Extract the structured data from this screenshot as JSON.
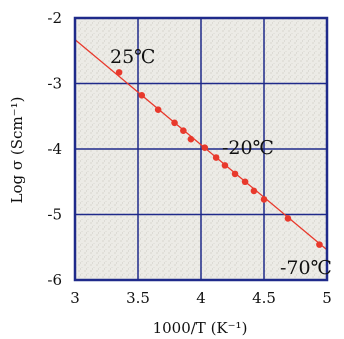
{
  "chart_data": {
    "type": "scatter",
    "xlabel": "1000/T (K⁻¹)",
    "ylabel": "Log σ (Scm⁻¹)",
    "xlim": [
      3,
      5
    ],
    "ylim": [
      -6,
      -2
    ],
    "xticks": [
      "3",
      "3.5",
      "4",
      "4.5",
      "5"
    ],
    "yticks": [
      "-2",
      "-3",
      "-4",
      "-5",
      "-6"
    ],
    "grid": true,
    "series": [
      {
        "points": [
          [
            3.35,
            -2.83
          ],
          [
            3.53,
            -3.18
          ],
          [
            3.66,
            -3.4
          ],
          [
            3.79,
            -3.6
          ],
          [
            3.86,
            -3.72
          ],
          [
            3.92,
            -3.85
          ],
          [
            4.03,
            -3.98
          ],
          [
            4.12,
            -4.13
          ],
          [
            4.19,
            -4.25
          ],
          [
            4.27,
            -4.38
          ],
          [
            4.35,
            -4.5
          ],
          [
            4.42,
            -4.64
          ],
          [
            4.5,
            -4.77
          ],
          [
            4.69,
            -5.06
          ],
          [
            4.94,
            -5.46
          ]
        ],
        "fit_line": [
          [
            3.0,
            -2.33
          ],
          [
            5.0,
            -5.54
          ]
        ]
      }
    ],
    "annotations": [
      "25℃",
      "-20℃",
      "-70℃"
    ],
    "colors": {
      "marker": "#e8392c",
      "line": "#e8392c",
      "grid": "#1f2a8a",
      "frame": "#1f2a8a",
      "plot_bg": "#ecebe6"
    }
  }
}
